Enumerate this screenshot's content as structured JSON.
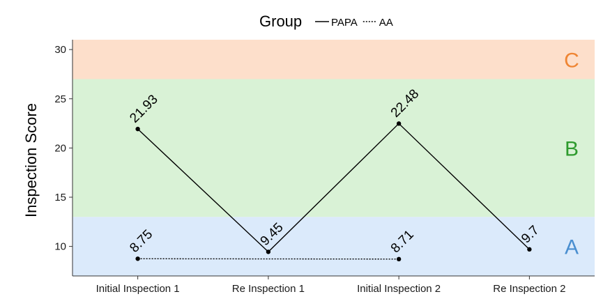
{
  "chart_data": {
    "type": "line",
    "title": "",
    "xlabel": "",
    "ylabel": "Inspection Score",
    "ylim": [
      7,
      31
    ],
    "yticks": [
      10,
      15,
      20,
      25,
      30
    ],
    "categories": [
      "Initial Inspection 1",
      "Re Inspection 1",
      "Initial Inspection 2",
      "Re Inspection 2"
    ],
    "legend": {
      "title": "Group",
      "position": "top"
    },
    "series": [
      {
        "name": "PAPA",
        "line_style": "solid",
        "points": [
          {
            "category": "Initial Inspection 1",
            "value": 21.93,
            "label": "21.93"
          },
          {
            "category": "Re Inspection 1",
            "value": 9.45,
            "label": "9.45"
          },
          {
            "category": "Initial Inspection 2",
            "value": 22.48,
            "label": "22.48"
          },
          {
            "category": "Re Inspection 2",
            "value": 9.7,
            "label": "9.7"
          }
        ]
      },
      {
        "name": "AA",
        "line_style": "dotted",
        "points": [
          {
            "category": "Initial Inspection 1",
            "value": 8.75,
            "label": "8.75"
          },
          {
            "category": "Initial Inspection 2",
            "value": 8.71,
            "label": "8.71"
          }
        ]
      }
    ],
    "bands": [
      {
        "label": "A",
        "from": 7,
        "to": 13,
        "fill": "#dbeafb",
        "label_color": "#4a8fd0"
      },
      {
        "label": "B",
        "from": 13,
        "to": 27,
        "fill": "#d9f2d6",
        "label_color": "#2e9b2e"
      },
      {
        "label": "C",
        "from": 27,
        "to": 31,
        "fill": "#fddfcb",
        "label_color": "#ef8533"
      }
    ],
    "grid": false
  }
}
